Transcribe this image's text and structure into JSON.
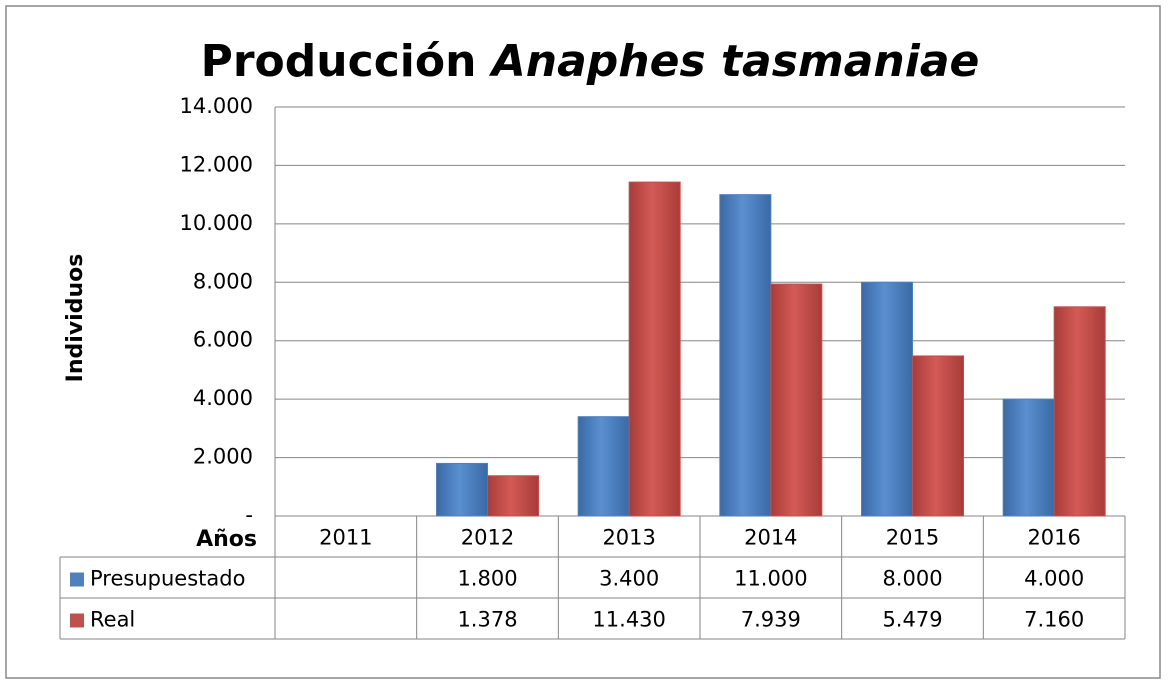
{
  "chart_data": {
    "type": "bar",
    "title": [
      "Producción",
      "Anaphes tasmaniae"
    ],
    "y_label": "Individuos",
    "table_header": "Años",
    "categories": [
      "2011",
      "2012",
      "2013",
      "2014",
      "2015",
      "2016"
    ],
    "series": [
      {
        "name": "Presupuestado",
        "color": "#4f81bd",
        "values": [
          null,
          1800,
          3400,
          11000,
          8000,
          4000
        ],
        "value_labels": [
          null,
          "1.800",
          "3.400",
          "11.000",
          "8.000",
          "4.000"
        ]
      },
      {
        "name": "Real",
        "color": "#c0504d",
        "values": [
          null,
          1378,
          11430,
          7939,
          5479,
          7160
        ],
        "value_labels": [
          null,
          "1.378",
          "11.430",
          "7.939",
          "5.479",
          "7.160"
        ]
      }
    ],
    "ylim": [
      0,
      14000
    ],
    "yticks": [
      {
        "value": 0,
        "label": "-"
      },
      {
        "value": 2000,
        "label": "2.000"
      },
      {
        "value": 4000,
        "label": "4.000"
      },
      {
        "value": 6000,
        "label": "6.000"
      },
      {
        "value": 8000,
        "label": "8.000"
      },
      {
        "value": 10000,
        "label": "10.000"
      },
      {
        "value": 12000,
        "label": "12.000"
      },
      {
        "value": 14000,
        "label": "14.000"
      }
    ],
    "grid": true
  }
}
